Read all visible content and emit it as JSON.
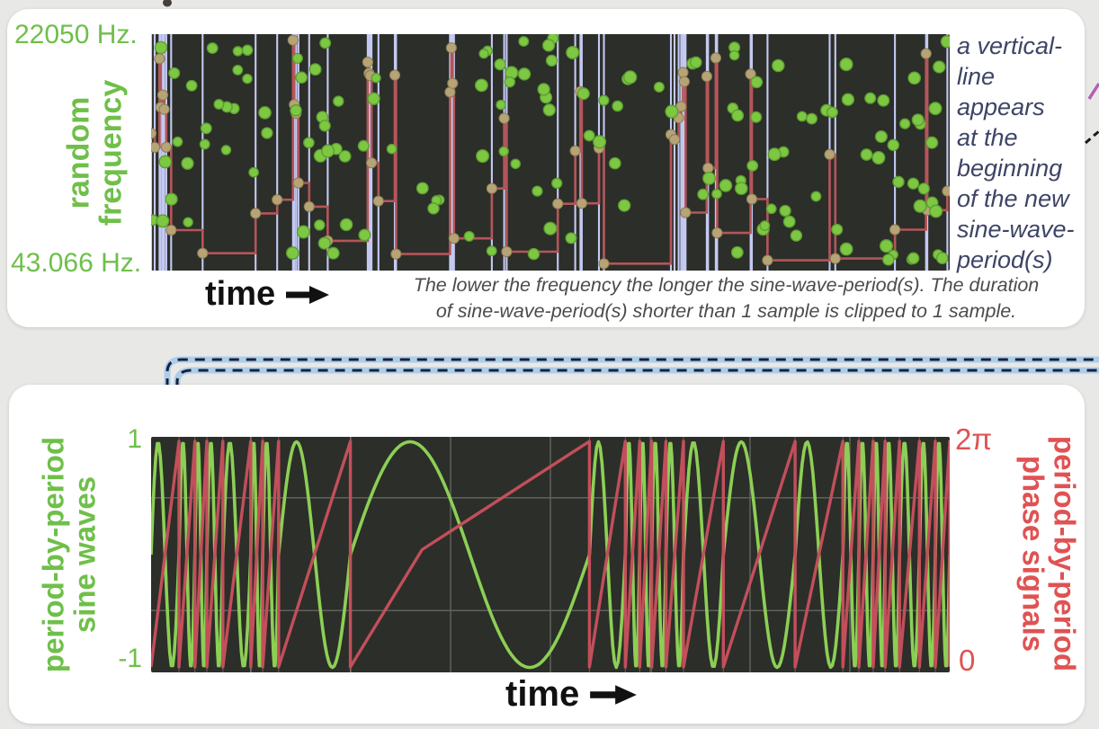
{
  "top_panel": {
    "y_max_label": "22050 Hz.",
    "y_min_label": "43.066 Hz.",
    "axis_label_line1": "random",
    "axis_label_line2": "frequency",
    "time_label": "time",
    "caption": "The lower the frequency the longer the sine-wave-period(s). The duration\nof sine-wave-period(s) shorter than 1 sample is clipped to 1 sample.",
    "side_note": "a vertical-\nline\nappears\nat the\nbeginning\nof the new\nsine-wave-\nperiod(s)"
  },
  "bottom_panel": {
    "y_max_label": "1",
    "y_min_label": "-1",
    "left_axis_line1": "period-by-period",
    "left_axis_line2": "sine waves",
    "right_axis_line1": "period-by-period",
    "right_axis_line2": "phase signals",
    "phase_max_label": "2π",
    "phase_min_label": "0",
    "time_label": "time"
  },
  "colors": {
    "page_bg": "#e8e9e7",
    "card_bg": "#ffffff",
    "green_label": "#6fbf4a",
    "red_label": "#e05253",
    "note_text": "#3d4566",
    "caption_text": "#4b4b4b",
    "time_text": "#111111",
    "plot_bg": "#2c2e29",
    "period_line": "#c4c9f2",
    "freq_step": "#b5555a",
    "dot_fill": "#7dc742",
    "dot_edge": "#5a9c31",
    "boundary_dot": "#b7a476",
    "sine_wave": "#8ccf55",
    "phase_wave": "#c24f5b",
    "grid_line": "#5f625c",
    "boundary_faint": "#c8cdc6",
    "connector_base": "#aecdea",
    "connector_dash": "#14233e",
    "fragment_magenta": "#b65fb0",
    "fragment_dark": "#1a1a1a",
    "fragment_teal": "#7fb8b0"
  },
  "chart_data": [
    {
      "id": "random-frequency-plot",
      "type": "scatter",
      "title": "random frequency",
      "xlabel": "time",
      "ylabel": "random frequency",
      "y_axis_ticks": [
        "43.066 Hz.",
        "22050 Hz."
      ],
      "y_scale": "log",
      "annotations": [
        "a vertical-line appears at the beginning of the new sine-wave-period(s)",
        "The lower the frequency the longer the sine-wave-period(s). The duration of sine-wave-period(s) shorter than 1 sample is clipped to 1 sample."
      ],
      "content": "green dots = random frequency stream; red step line = frequency held for each sine-wave-period (low frequency gives long flat bottom segments, high frequency gives clustered short segments); light blue vertical lines mark each new sine-wave-period start",
      "gen": {
        "seed": 42,
        "base_len": 0.085,
        "log_spread": 2.2,
        "min_len": 0.0016,
        "n_dots": 150,
        "dot_seed": 1234
      }
    },
    {
      "id": "period-by-period-plot",
      "type": "line",
      "xlabel": "time",
      "left_series": {
        "name": "period-by-period sine waves",
        "range": [
          -1,
          1
        ],
        "color": "#8ccf55"
      },
      "right_series": {
        "name": "period-by-period phase signals",
        "range": [
          "0",
          "2π"
        ],
        "color": "#c24f5b"
      },
      "periods": [
        0.035,
        0.02,
        0.015,
        0.02,
        0.035,
        0.015,
        0.02,
        0.09,
        0.3,
        0.045,
        0.018,
        0.015,
        0.018,
        0.022,
        0.05,
        0.09,
        0.06,
        0.02,
        0.018,
        0.015,
        0.018,
        0.025,
        0.02,
        0.018
      ],
      "content": "each period: green = one full sine cycle, red = phase ramp rising linearly 0 to 2π then resetting",
      "grid": {
        "v_divisions": 8,
        "h_lines": [
          0.5,
          -0.5
        ]
      }
    }
  ]
}
